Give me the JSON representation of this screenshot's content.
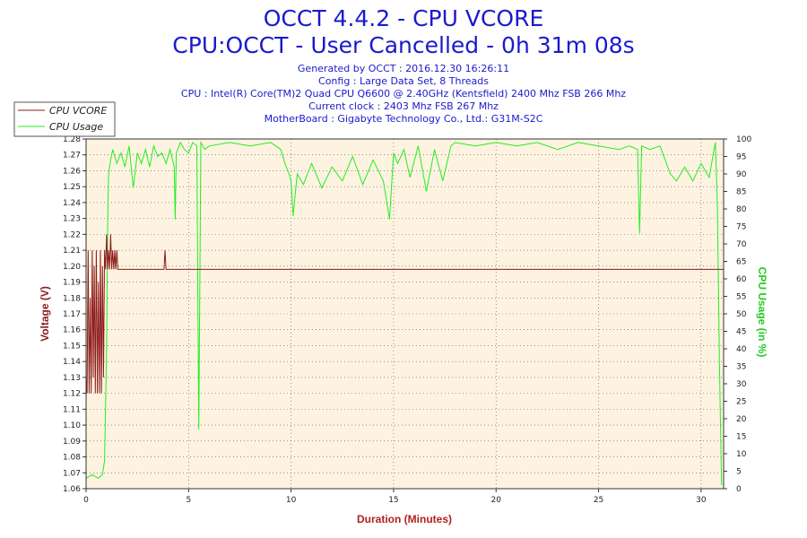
{
  "header": {
    "title": "OCCT 4.4.2 - CPU VCORE",
    "subtitle": "CPU:OCCT - User Cancelled - 0h 31m 08s",
    "info_lines": [
      "Generated by OCCT : 2016.12.30 16:26:11",
      "Config : Large Data Set, 8 Threads",
      "CPU : Intel(R) Core(TM)2 Quad CPU Q6600 @ 2.40GHz (Kentsfield) 2400 Mhz FSB 266 Mhz",
      "Current clock : 2403 Mhz FSB 267 Mhz",
      "MotherBoard : Gigabyte Technology Co., Ltd.: G31M-S2C"
    ]
  },
  "colors": {
    "vcore": "#8b1a1a",
    "usage": "#22ee22",
    "plot_bg": "#fdf3e0",
    "grid": "#555555",
    "axis_label_left": "#8b1a1a",
    "axis_label_right": "#22cc22",
    "axis_label_bottom": "#b02020"
  },
  "chart_data": {
    "type": "line",
    "xlabel": "Duration (Minutes)",
    "ylabel_left": "Voltage (V)",
    "ylabel_right": "CPU Usage (in %)",
    "xlim": [
      0,
      31.1
    ],
    "ylim_left": [
      1.06,
      1.28
    ],
    "ylim_right": [
      0,
      100
    ],
    "x_ticks": [
      0,
      5,
      10,
      15,
      20,
      25,
      30
    ],
    "y_left_ticks": [
      "1.06",
      "1.07",
      "1.08",
      "1.09",
      "1.10",
      "1.11",
      "1.12",
      "1.13",
      "1.14",
      "1.15",
      "1.16",
      "1.17",
      "1.18",
      "1.19",
      "1.20",
      "1.21",
      "1.22",
      "1.23",
      "1.24",
      "1.25",
      "1.26",
      "1.27",
      "1.28"
    ],
    "y_right_ticks": [
      0,
      5,
      10,
      15,
      20,
      25,
      30,
      35,
      40,
      45,
      50,
      55,
      60,
      65,
      70,
      75,
      80,
      85,
      90,
      95,
      100
    ],
    "grid": true,
    "legend": [
      "CPU VCORE",
      "CPU Usage"
    ],
    "legend_position": "top-left",
    "series": [
      {
        "name": "CPU VCORE",
        "axis": "left",
        "x": [
          0,
          0.05,
          0.1,
          0.15,
          0.2,
          0.25,
          0.3,
          0.35,
          0.4,
          0.45,
          0.5,
          0.55,
          0.6,
          0.65,
          0.7,
          0.75,
          0.8,
          0.85,
          0.9,
          0.95,
          1.0,
          1.05,
          1.1,
          1.15,
          1.2,
          1.25,
          1.3,
          1.35,
          1.4,
          1.45,
          1.5,
          1.55,
          1.6,
          3.8,
          3.85,
          3.9,
          3.95,
          4.0,
          31.1
        ],
        "y": [
          1.13,
          1.12,
          1.21,
          1.12,
          1.18,
          1.12,
          1.21,
          1.13,
          1.2,
          1.12,
          1.21,
          1.12,
          1.19,
          1.12,
          1.21,
          1.12,
          1.2,
          1.13,
          1.21,
          1.198,
          1.22,
          1.198,
          1.21,
          1.198,
          1.22,
          1.198,
          1.21,
          1.198,
          1.21,
          1.198,
          1.21,
          1.198,
          1.198,
          1.198,
          1.21,
          1.198,
          1.198,
          1.198,
          1.198
        ]
      },
      {
        "name": "CPU Usage",
        "axis": "right",
        "x": [
          0,
          0.3,
          0.6,
          0.8,
          0.9,
          1.0,
          1.05,
          1.1,
          1.2,
          1.3,
          1.5,
          1.7,
          1.9,
          2.1,
          2.3,
          2.5,
          2.7,
          2.9,
          3.1,
          3.3,
          3.5,
          3.7,
          3.9,
          4.1,
          4.3,
          4.35,
          4.4,
          4.6,
          4.8,
          5.0,
          5.2,
          5.4,
          5.5,
          5.6,
          5.8,
          6.0,
          7.0,
          8.0,
          9.0,
          9.5,
          9.7,
          9.9,
          10.0,
          10.1,
          10.3,
          10.6,
          11.0,
          11.5,
          12.0,
          12.5,
          13.0,
          13.5,
          14.0,
          14.5,
          14.8,
          15.0,
          15.2,
          15.5,
          15.8,
          16.2,
          16.6,
          17.0,
          17.4,
          17.8,
          18.0,
          19.0,
          20.0,
          21.0,
          22.0,
          23.0,
          24.0,
          25.0,
          26.0,
          26.5,
          26.9,
          27.0,
          27.1,
          27.5,
          28.0,
          28.5,
          28.8,
          29.2,
          29.6,
          30.0,
          30.4,
          30.6,
          30.7,
          30.8,
          30.9,
          31.0
        ],
        "y": [
          3,
          4,
          3,
          4,
          8,
          40,
          75,
          90,
          94,
          97,
          93,
          96,
          92,
          98,
          86,
          96,
          93,
          97,
          92,
          98,
          95,
          96,
          93,
          97,
          92,
          77,
          96,
          99,
          97,
          96,
          99,
          98,
          17,
          99,
          97,
          98,
          99,
          98,
          99,
          97,
          93,
          90,
          88,
          78,
          90,
          87,
          93,
          86,
          92,
          88,
          95,
          87,
          94,
          88,
          77,
          96,
          93,
          97,
          89,
          98,
          85,
          97,
          88,
          98,
          99,
          98,
          99,
          98,
          99,
          97,
          99,
          98,
          97,
          98,
          97,
          73,
          98,
          97,
          98,
          90,
          88,
          92,
          88,
          93,
          89,
          96,
          99,
          80,
          35,
          1
        ]
      }
    ]
  }
}
